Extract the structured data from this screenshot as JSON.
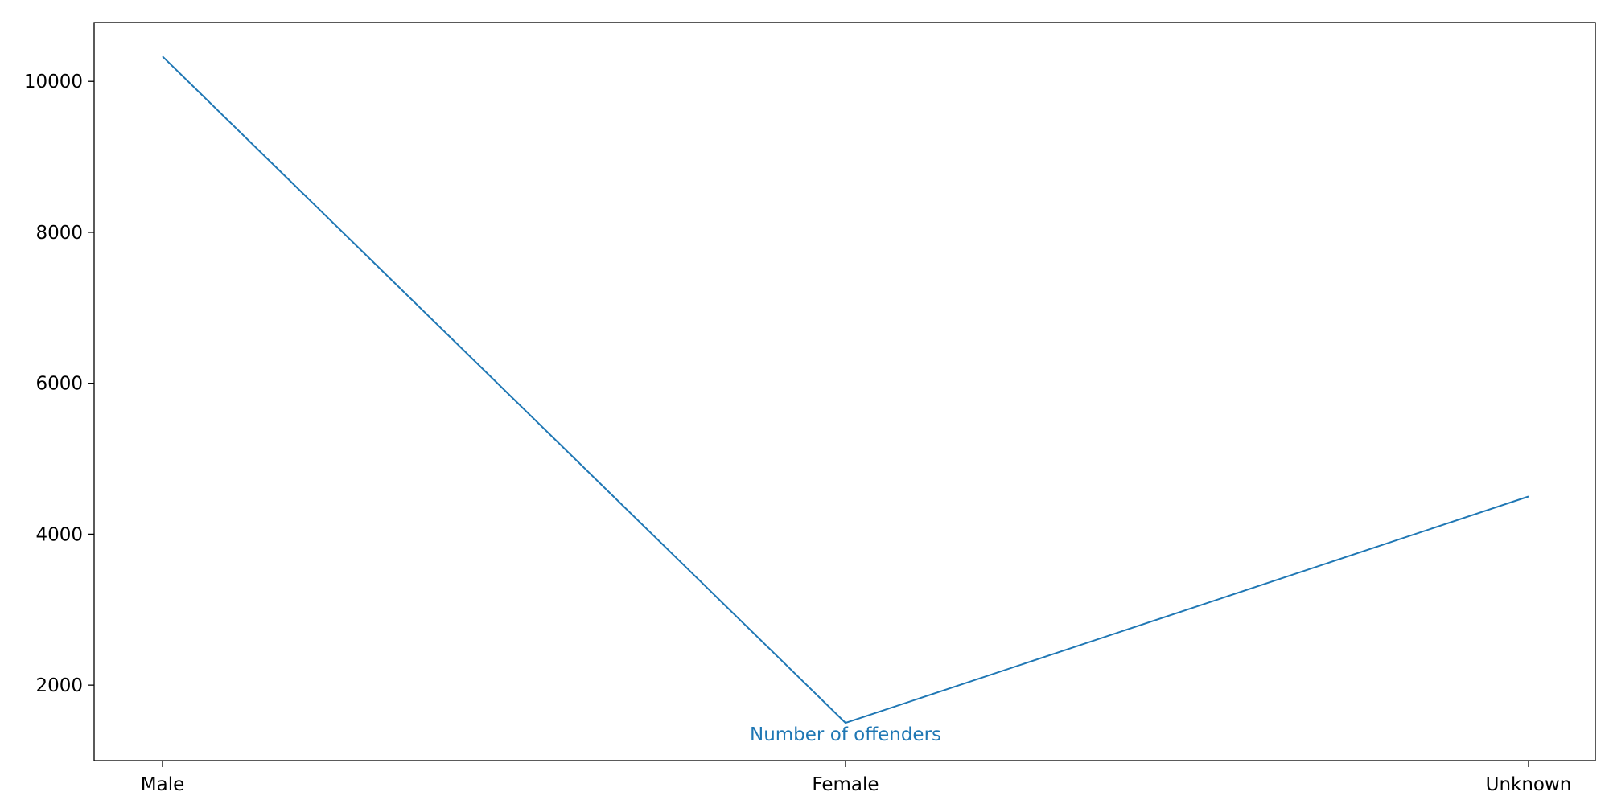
{
  "chart_data": {
    "type": "line",
    "categories": [
      "Male",
      "Female",
      "Unknown"
    ],
    "series": [
      {
        "values": [
          10330,
          1500,
          4500
        ],
        "color": "#1f77b4"
      }
    ],
    "annotations": [
      {
        "text": "Number of offenders",
        "category": "Female",
        "value": 1350
      }
    ],
    "ylim": [
      1000,
      10780
    ],
    "yticks": [
      2000,
      4000,
      6000,
      8000,
      10000
    ],
    "grid": false,
    "legend": "none"
  }
}
